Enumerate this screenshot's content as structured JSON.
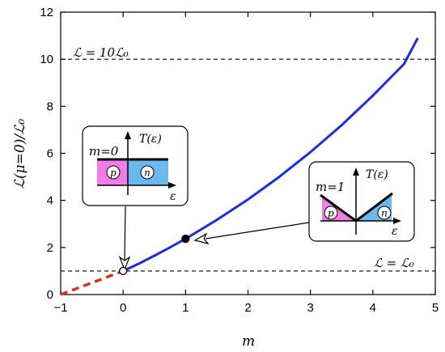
{
  "chart_data": {
    "type": "line",
    "xlabel": "m",
    "ylabel": "ℒ(μ=0)/ℒ₀",
    "xlim": [
      -1,
      5
    ],
    "ylim": [
      0,
      12
    ],
    "xticks": [
      -1,
      0,
      1,
      2,
      3,
      4,
      5
    ],
    "yticks": [
      0,
      2,
      4,
      6,
      8,
      10,
      12
    ],
    "grid": false,
    "series": [
      {
        "style": "solid",
        "color": "#1a2fd6",
        "x": [
          0,
          0.25,
          0.5,
          0.75,
          1,
          1.5,
          2,
          2.5,
          3,
          3.5,
          4,
          4.5,
          4.72
        ],
        "y": [
          1,
          1.31,
          1.65,
          2.0,
          2.37,
          3.17,
          4.04,
          5.0,
          6.05,
          7.2,
          8.45,
          9.8,
          10.9
        ]
      },
      {
        "style": "dashed",
        "color": "#e0311f",
        "x": [
          -1,
          0
        ],
        "y": [
          0,
          1
        ]
      }
    ],
    "reference_lines": [
      {
        "y": 10,
        "label": "ℒ = 10ℒ₀"
      },
      {
        "y": 1,
        "label": "ℒ = ℒ₀"
      }
    ],
    "markers": [
      {
        "x": 0,
        "y": 1,
        "fill": "open"
      },
      {
        "x": 1,
        "y": 2.37,
        "fill": "filled"
      }
    ]
  },
  "insets": [
    {
      "label": "m=0",
      "ylabel": "T(ε)",
      "xlabel": "ε",
      "left_region": "p",
      "right_region": "n",
      "left_color": "#f07ee6",
      "right_color": "#6ab8ee"
    },
    {
      "label": "m=1",
      "ylabel": "T(ε)",
      "xlabel": "ε",
      "left_region": "p",
      "right_region": "n",
      "left_color": "#f07ee6",
      "right_color": "#6ab8ee"
    }
  ]
}
